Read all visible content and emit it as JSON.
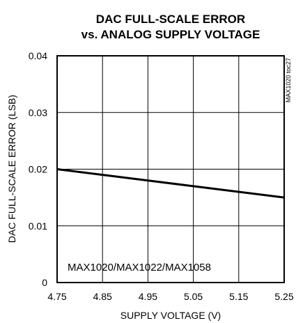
{
  "chart_data": {
    "type": "line",
    "title_line1": "DAC FULL-SCALE ERROR",
    "title_line2": "vs. ANALOG SUPPLY VOLTAGE",
    "xlabel": "SUPPLY VOLTAGE (V)",
    "ylabel": "DAC FULL-SCALE ERROR (LSB)",
    "x_ticks": [
      "4.75",
      "4.85",
      "4.95",
      "5.05",
      "5.15",
      "5.25"
    ],
    "y_ticks": [
      "0",
      "0.01",
      "0.02",
      "0.03",
      "0.04"
    ],
    "xlim": [
      4.75,
      5.25
    ],
    "ylim": [
      0,
      0.04
    ],
    "grid": true,
    "annotation": "MAX1020/MAX1022/MAX1058",
    "side_label": "MAX1020 toc27",
    "series": [
      {
        "x": [
          4.75,
          4.85,
          4.95,
          5.05,
          5.15,
          5.25
        ],
        "y": [
          0.02,
          0.019,
          0.018,
          0.017,
          0.016,
          0.015
        ]
      }
    ]
  }
}
